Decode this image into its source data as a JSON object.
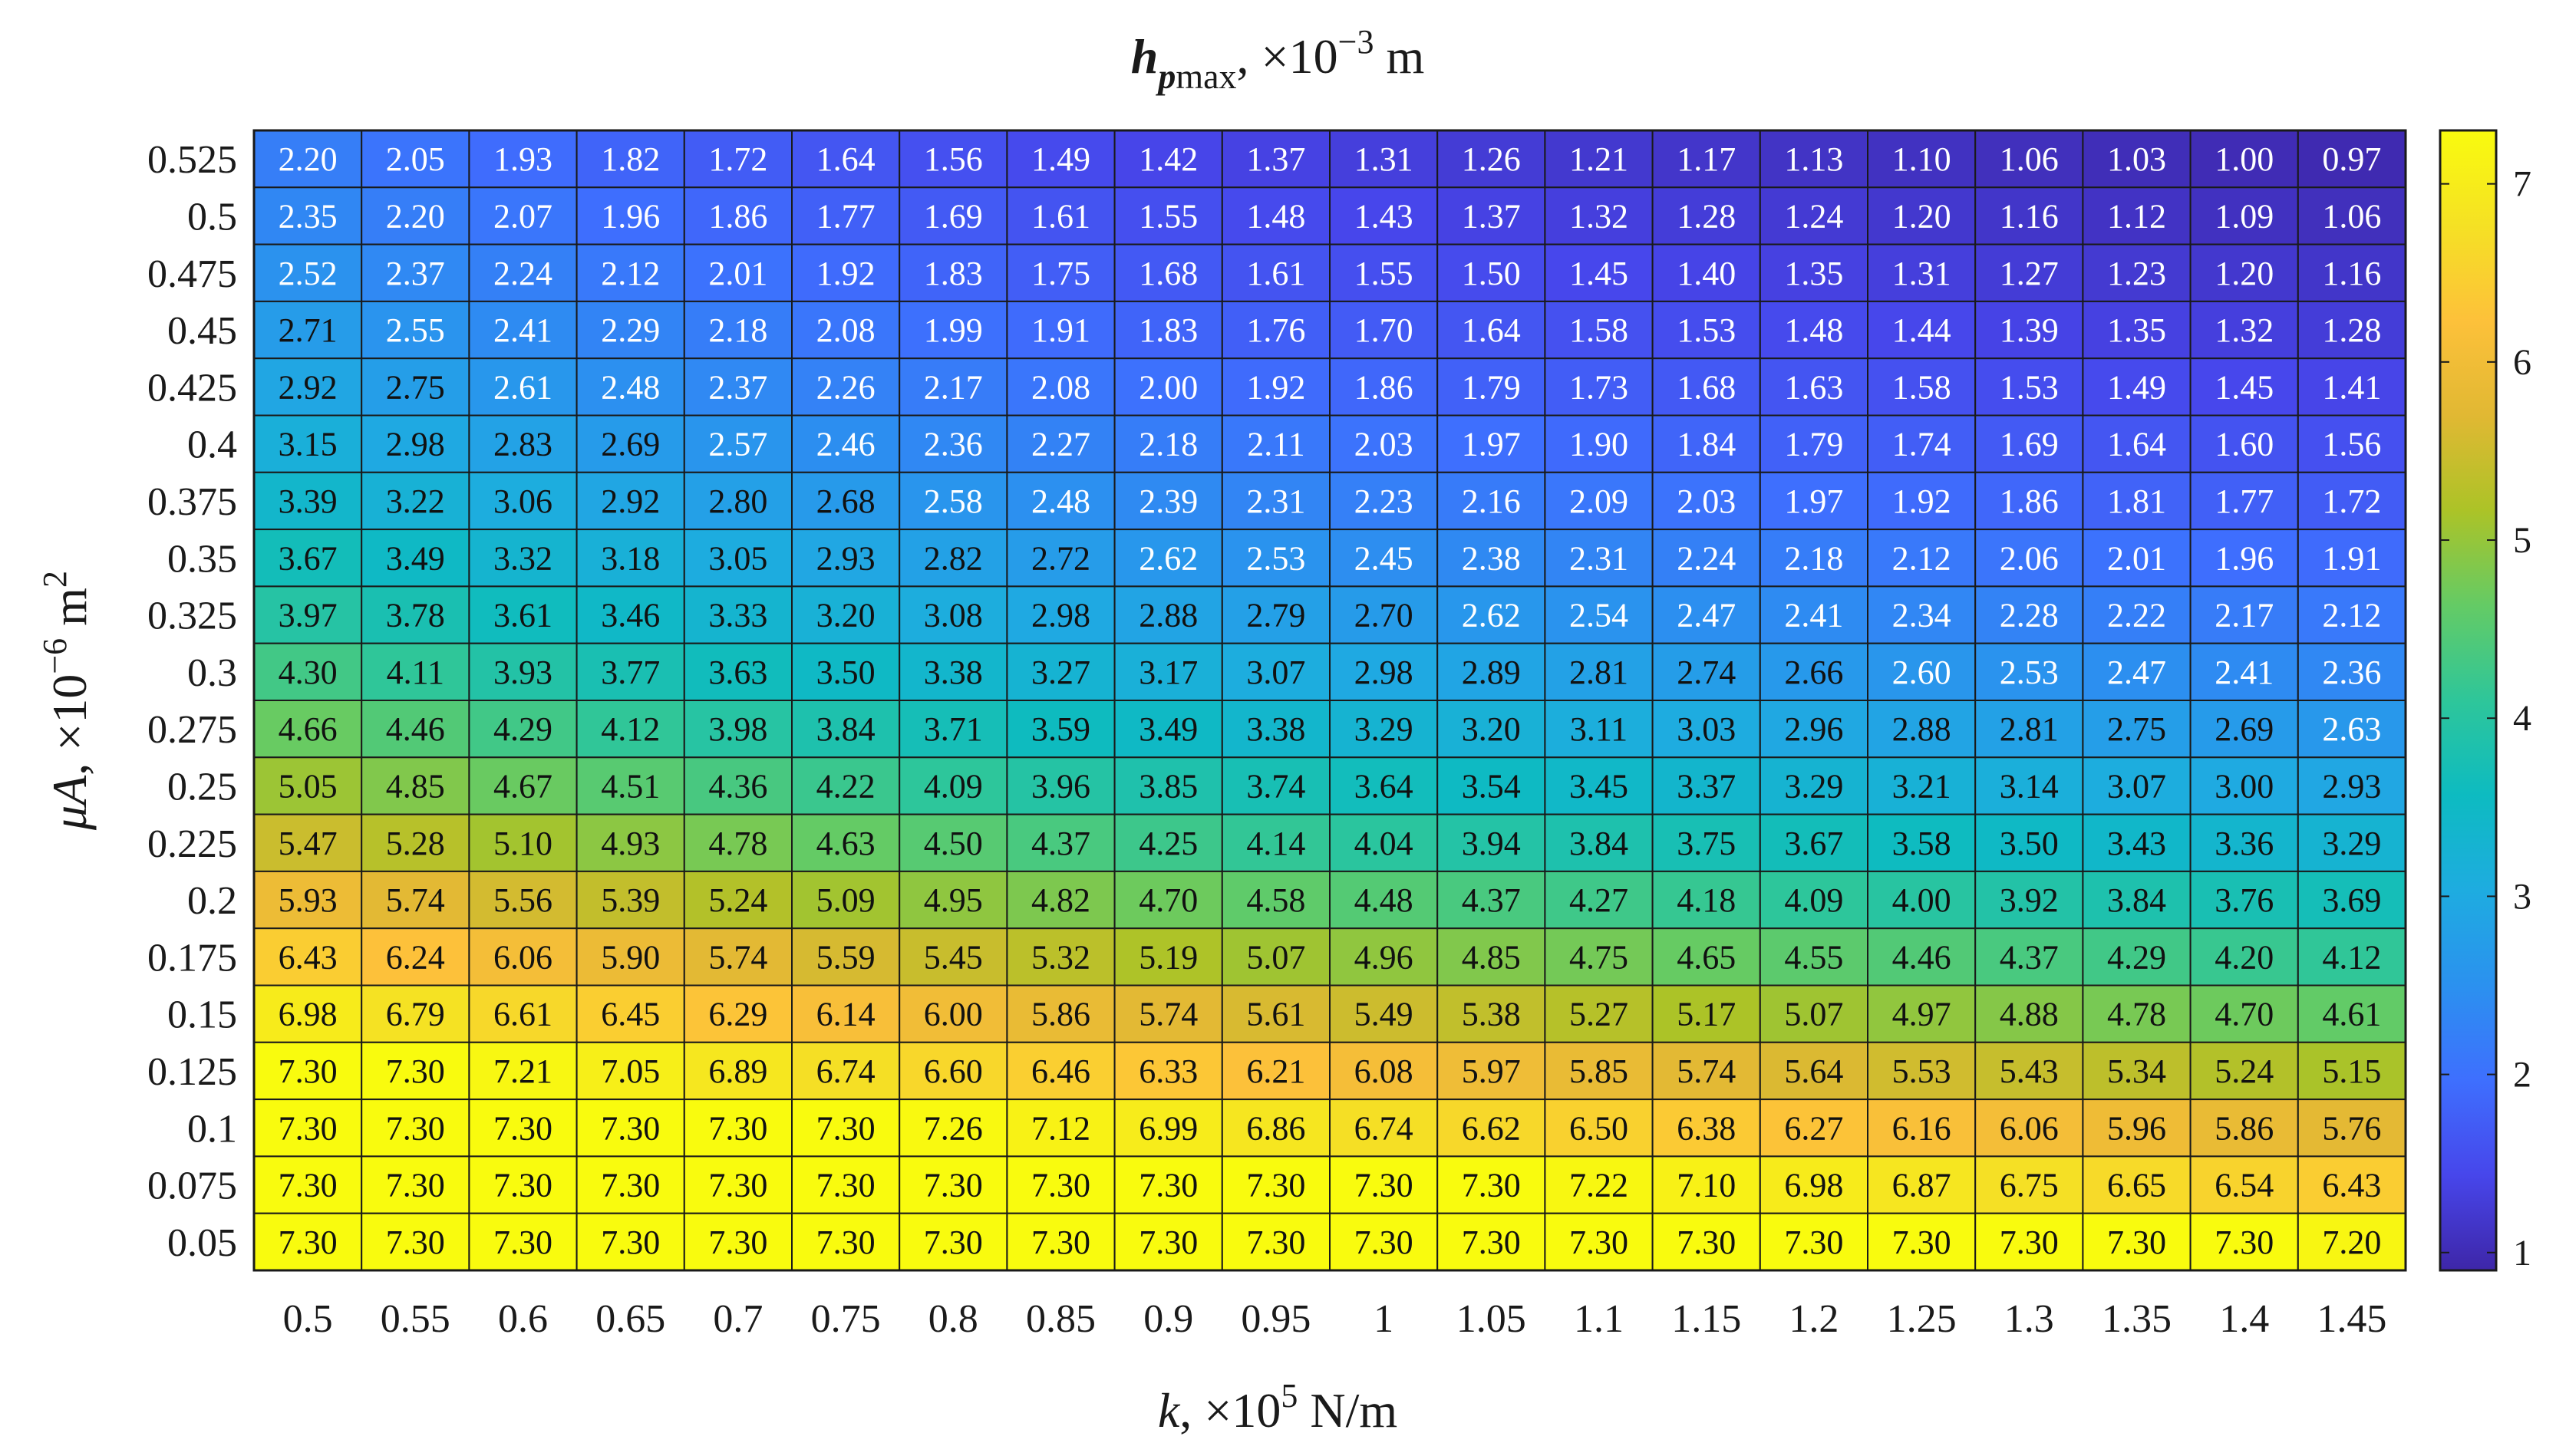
{
  "chart_data": {
    "type": "heatmap",
    "title": {
      "main": "h",
      "sub": "p",
      "sub2": "max",
      "rest": ", ×10",
      "exp": "−3",
      "unit": " m"
    },
    "xlabel": {
      "var": "k",
      "rest": ", ×10",
      "exp": "5",
      "unit": " N/m"
    },
    "ylabel": {
      "var": "μA",
      "rest": ", ×10",
      "exp": "−6",
      "unit": " m",
      "unit_exp": "2"
    },
    "x_ticks": [
      "0.5",
      "0.55",
      "0.6",
      "0.65",
      "0.7",
      "0.75",
      "0.8",
      "0.85",
      "0.9",
      "0.95",
      "1",
      "1.05",
      "1.1",
      "1.15",
      "1.2",
      "1.25",
      "1.3",
      "1.35",
      "1.4",
      "1.45"
    ],
    "y_ticks": [
      "0.525",
      "0.5",
      "0.475",
      "0.45",
      "0.425",
      "0.4",
      "0.375",
      "0.35",
      "0.325",
      "0.3",
      "0.275",
      "0.25",
      "0.225",
      "0.2",
      "0.175",
      "0.15",
      "0.125",
      "0.1",
      "0.075",
      "0.05"
    ],
    "values": [
      [
        2.2,
        2.05,
        1.93,
        1.82,
        1.72,
        1.64,
        1.56,
        1.49,
        1.42,
        1.37,
        1.31,
        1.26,
        1.21,
        1.17,
        1.13,
        1.1,
        1.06,
        1.03,
        1.0,
        0.97
      ],
      [
        2.35,
        2.2,
        2.07,
        1.96,
        1.86,
        1.77,
        1.69,
        1.61,
        1.55,
        1.48,
        1.43,
        1.37,
        1.32,
        1.28,
        1.24,
        1.2,
        1.16,
        1.12,
        1.09,
        1.06
      ],
      [
        2.52,
        2.37,
        2.24,
        2.12,
        2.01,
        1.92,
        1.83,
        1.75,
        1.68,
        1.61,
        1.55,
        1.5,
        1.45,
        1.4,
        1.35,
        1.31,
        1.27,
        1.23,
        1.2,
        1.16
      ],
      [
        2.71,
        2.55,
        2.41,
        2.29,
        2.18,
        2.08,
        1.99,
        1.91,
        1.83,
        1.76,
        1.7,
        1.64,
        1.58,
        1.53,
        1.48,
        1.44,
        1.39,
        1.35,
        1.32,
        1.28
      ],
      [
        2.92,
        2.75,
        2.61,
        2.48,
        2.37,
        2.26,
        2.17,
        2.08,
        2.0,
        1.92,
        1.86,
        1.79,
        1.73,
        1.68,
        1.63,
        1.58,
        1.53,
        1.49,
        1.45,
        1.41
      ],
      [
        3.15,
        2.98,
        2.83,
        2.69,
        2.57,
        2.46,
        2.36,
        2.27,
        2.18,
        2.11,
        2.03,
        1.97,
        1.9,
        1.84,
        1.79,
        1.74,
        1.69,
        1.64,
        1.6,
        1.56
      ],
      [
        3.39,
        3.22,
        3.06,
        2.92,
        2.8,
        2.68,
        2.58,
        2.48,
        2.39,
        2.31,
        2.23,
        2.16,
        2.09,
        2.03,
        1.97,
        1.92,
        1.86,
        1.81,
        1.77,
        1.72
      ],
      [
        3.67,
        3.49,
        3.32,
        3.18,
        3.05,
        2.93,
        2.82,
        2.72,
        2.62,
        2.53,
        2.45,
        2.38,
        2.31,
        2.24,
        2.18,
        2.12,
        2.06,
        2.01,
        1.96,
        1.91
      ],
      [
        3.97,
        3.78,
        3.61,
        3.46,
        3.33,
        3.2,
        3.08,
        2.98,
        2.88,
        2.79,
        2.7,
        2.62,
        2.54,
        2.47,
        2.41,
        2.34,
        2.28,
        2.22,
        2.17,
        2.12
      ],
      [
        4.3,
        4.11,
        3.93,
        3.77,
        3.63,
        3.5,
        3.38,
        3.27,
        3.17,
        3.07,
        2.98,
        2.89,
        2.81,
        2.74,
        2.66,
        2.6,
        2.53,
        2.47,
        2.41,
        2.36
      ],
      [
        4.66,
        4.46,
        4.29,
        4.12,
        3.98,
        3.84,
        3.71,
        3.59,
        3.49,
        3.38,
        3.29,
        3.2,
        3.11,
        3.03,
        2.96,
        2.88,
        2.81,
        2.75,
        2.69,
        2.63
      ],
      [
        5.05,
        4.85,
        4.67,
        4.51,
        4.36,
        4.22,
        4.09,
        3.96,
        3.85,
        3.74,
        3.64,
        3.54,
        3.45,
        3.37,
        3.29,
        3.21,
        3.14,
        3.07,
        3.0,
        2.93
      ],
      [
        5.47,
        5.28,
        5.1,
        4.93,
        4.78,
        4.63,
        4.5,
        4.37,
        4.25,
        4.14,
        4.04,
        3.94,
        3.84,
        3.75,
        3.67,
        3.58,
        3.5,
        3.43,
        3.36,
        3.29
      ],
      [
        5.93,
        5.74,
        5.56,
        5.39,
        5.24,
        5.09,
        4.95,
        4.82,
        4.7,
        4.58,
        4.48,
        4.37,
        4.27,
        4.18,
        4.09,
        4.0,
        3.92,
        3.84,
        3.76,
        3.69
      ],
      [
        6.43,
        6.24,
        6.06,
        5.9,
        5.74,
        5.59,
        5.45,
        5.32,
        5.19,
        5.07,
        4.96,
        4.85,
        4.75,
        4.65,
        4.55,
        4.46,
        4.37,
        4.29,
        4.2,
        4.12
      ],
      [
        6.98,
        6.79,
        6.61,
        6.45,
        6.29,
        6.14,
        6.0,
        5.86,
        5.74,
        5.61,
        5.49,
        5.38,
        5.27,
        5.17,
        5.07,
        4.97,
        4.88,
        4.78,
        4.7,
        4.61
      ],
      [
        7.3,
        7.3,
        7.21,
        7.05,
        6.89,
        6.74,
        6.6,
        6.46,
        6.33,
        6.21,
        6.08,
        5.97,
        5.85,
        5.74,
        5.64,
        5.53,
        5.43,
        5.34,
        5.24,
        5.15
      ],
      [
        7.3,
        7.3,
        7.3,
        7.3,
        7.3,
        7.3,
        7.26,
        7.12,
        6.99,
        6.86,
        6.74,
        6.62,
        6.5,
        6.38,
        6.27,
        6.16,
        6.06,
        5.96,
        5.86,
        5.76
      ],
      [
        7.3,
        7.3,
        7.3,
        7.3,
        7.3,
        7.3,
        7.3,
        7.3,
        7.3,
        7.3,
        7.3,
        7.3,
        7.22,
        7.1,
        6.98,
        6.87,
        6.75,
        6.65,
        6.54,
        6.43
      ],
      [
        7.3,
        7.3,
        7.3,
        7.3,
        7.3,
        7.3,
        7.3,
        7.3,
        7.3,
        7.3,
        7.3,
        7.3,
        7.3,
        7.3,
        7.3,
        7.3,
        7.3,
        7.3,
        7.3,
        7.2
      ]
    ],
    "colorbar": {
      "min": 0.9,
      "max": 7.3,
      "ticks": [
        "1",
        "2",
        "3",
        "4",
        "5",
        "6",
        "7"
      ],
      "colormap": "parula",
      "stops": [
        "#3e26a8",
        "#4746eb",
        "#3e6ffe",
        "#2b91ef",
        "#1eace0",
        "#0dbbc1",
        "#2ec69a",
        "#64cb65",
        "#acc327",
        "#e1b833",
        "#fdc13a",
        "#f5e124",
        "#f9fb0e"
      ]
    },
    "grid_line_color": "#1a1a1a",
    "text_dark": "#111111",
    "text_light": "#ffffff"
  }
}
